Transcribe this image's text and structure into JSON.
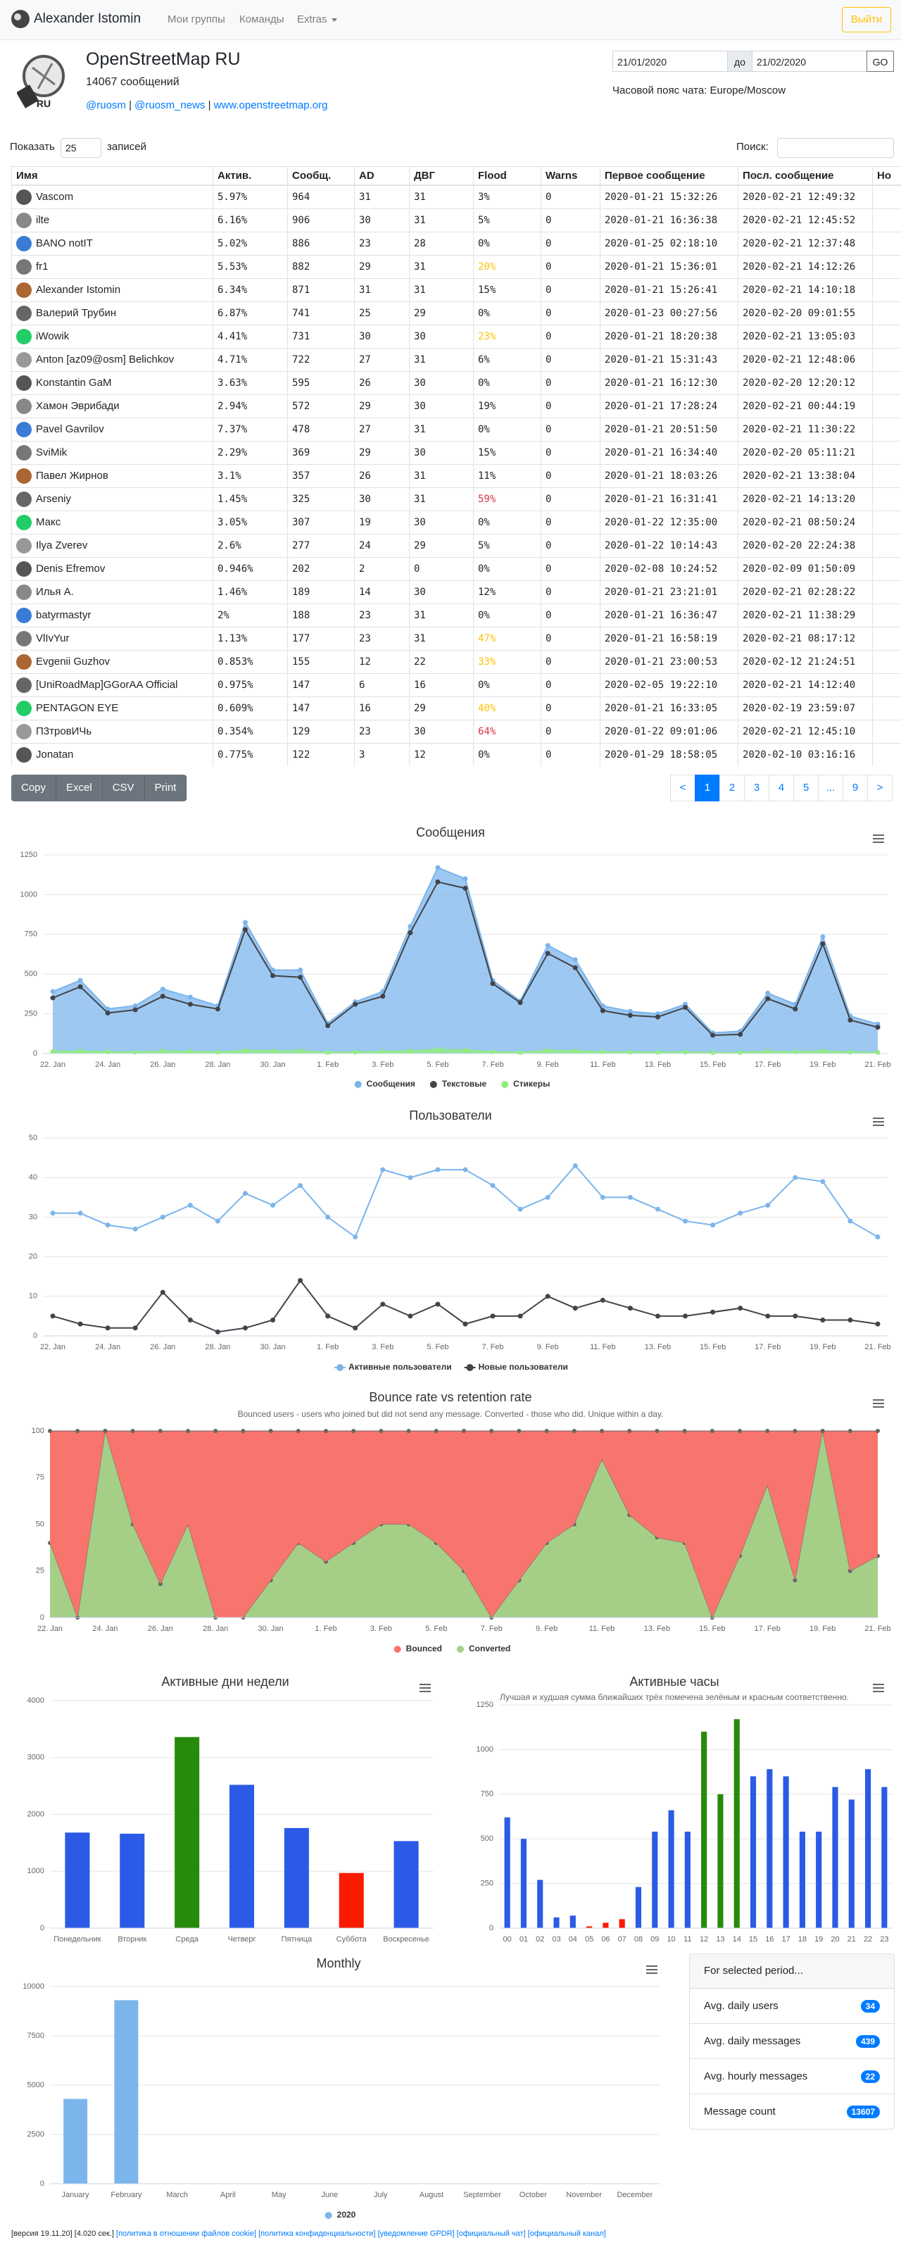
{
  "header": {
    "brand": "Alexander Istomin",
    "nav": [
      "Мои группы",
      "Команды",
      "Extras"
    ],
    "logout": "Выйти",
    "logo_text": "RU",
    "group_title": "OpenStreetMap RU",
    "group_count": "14067 сообщений",
    "links": [
      "@ruosm",
      "@ruosm_news",
      "www.openstreetmap.org"
    ],
    "separator": "|",
    "date_from": "21/01/2020",
    "date_to_label": "до",
    "date_to": "21/02/2020",
    "go": "GO",
    "timezone": "Часовой пояс чата: Europe/Moscow"
  },
  "table_controls": {
    "show": "Показать",
    "page_size": "25",
    "entries": "записей",
    "search": "Поиск:",
    "buttons": [
      "Copy",
      "Excel",
      "CSV",
      "Print"
    ],
    "pagination": [
      "<",
      "1",
      "2",
      "3",
      "4",
      "5",
      "...",
      "9",
      ">"
    ],
    "active": "1"
  },
  "table": {
    "columns": [
      "Имя",
      "Актив.",
      "Сообщ.",
      "AD",
      "ДВГ",
      "Flood",
      "Warns",
      "Первое сообщение",
      "Посл. сообщение",
      "Но"
    ],
    "rows": [
      [
        "Vascom",
        "5.97%",
        "964",
        "31",
        "31",
        "3%",
        "0",
        "2020-01-21 15:32:26",
        "2020-02-21 12:49:32"
      ],
      [
        "ilte",
        "6.16%",
        "906",
        "30",
        "31",
        "5%",
        "0",
        "2020-01-21 16:36:38",
        "2020-02-21 12:45:52"
      ],
      [
        "BANO notIT",
        "5.02%",
        "886",
        "23",
        "28",
        "0%",
        "0",
        "2020-01-25 02:18:10",
        "2020-02-21 12:37:48"
      ],
      [
        "fr1",
        "5.53%",
        "882",
        "29",
        "31",
        "20%",
        "0",
        "2020-01-21 15:36:01",
        "2020-02-21 14:12:26"
      ],
      [
        "Alexander Istomin",
        "6.34%",
        "871",
        "31",
        "31",
        "15%",
        "0",
        "2020-01-21 15:26:41",
        "2020-02-21 14:10:18"
      ],
      [
        "Валерий Трубин",
        "6.87%",
        "741",
        "25",
        "29",
        "0%",
        "0",
        "2020-01-23 00:27:56",
        "2020-02-20 09:01:55"
      ],
      [
        "iWowik",
        "4.41%",
        "731",
        "30",
        "30",
        "23%",
        "0",
        "2020-01-21 18:20:38",
        "2020-02-21 13:05:03"
      ],
      [
        "Anton [az09@osm] Belichkov",
        "4.71%",
        "722",
        "27",
        "31",
        "6%",
        "0",
        "2020-01-21 15:31:43",
        "2020-02-21 12:48:06"
      ],
      [
        "Konstantin GaM",
        "3.63%",
        "595",
        "26",
        "30",
        "0%",
        "0",
        "2020-01-21 16:12:30",
        "2020-02-20 12:20:12"
      ],
      [
        "Хамон Эврибади",
        "2.94%",
        "572",
        "29",
        "30",
        "19%",
        "0",
        "2020-01-21 17:28:24",
        "2020-02-21 00:44:19"
      ],
      [
        "Pavel Gavrilov",
        "7.37%",
        "478",
        "27",
        "31",
        "0%",
        "0",
        "2020-01-21 20:51:50",
        "2020-02-21 11:30:22"
      ],
      [
        "SviMik",
        "2.29%",
        "369",
        "29",
        "30",
        "15%",
        "0",
        "2020-01-21 16:34:40",
        "2020-02-20 05:11:21"
      ],
      [
        "Павел Жирнов",
        "3.1%",
        "357",
        "26",
        "31",
        "11%",
        "0",
        "2020-01-21 18:03:26",
        "2020-02-21 13:38:04"
      ],
      [
        "Arseniy",
        "1.45%",
        "325",
        "30",
        "31",
        "59%",
        "0",
        "2020-01-21 16:31:41",
        "2020-02-21 14:13:20"
      ],
      [
        "Макс",
        "3.05%",
        "307",
        "19",
        "30",
        "0%",
        "0",
        "2020-01-22 12:35:00",
        "2020-02-21 08:50:24"
      ],
      [
        "Ilya Zverev",
        "2.6%",
        "277",
        "24",
        "29",
        "5%",
        "0",
        "2020-01-22 10:14:43",
        "2020-02-20 22:24:38"
      ],
      [
        "Denis Efremov",
        "0.946%",
        "202",
        "2",
        "0",
        "0%",
        "0",
        "2020-02-08 10:24:52",
        "2020-02-09 01:50:09"
      ],
      [
        "Илья А.",
        "1.46%",
        "189",
        "14",
        "30",
        "12%",
        "0",
        "2020-01-21 23:21:01",
        "2020-02-21 02:28:22"
      ],
      [
        "batyrmastyr",
        "2%",
        "188",
        "23",
        "31",
        "0%",
        "0",
        "2020-01-21 16:36:47",
        "2020-02-21 11:38:29"
      ],
      [
        "VlIvYur",
        "1.13%",
        "177",
        "23",
        "31",
        "47%",
        "0",
        "2020-01-21 16:58:19",
        "2020-02-21 08:17:12"
      ],
      [
        "Evgenii Guzhov",
        "0.853%",
        "155",
        "12",
        "22",
        "33%",
        "0",
        "2020-01-21 23:00:53",
        "2020-02-12 21:24:51"
      ],
      [
        "[UniRoadMap]GGorAA Official",
        "0.975%",
        "147",
        "6",
        "16",
        "0%",
        "0",
        "2020-02-05 19:22:10",
        "2020-02-21 14:12:40"
      ],
      [
        "PENTAGON EYE",
        "0.609%",
        "147",
        "16",
        "29",
        "40%",
        "0",
        "2020-01-21 16:33:05",
        "2020-02-19 23:59:07"
      ],
      [
        "П3тровИЧь",
        "0.354%",
        "129",
        "23",
        "30",
        "64%",
        "0",
        "2020-01-22 09:01:06",
        "2020-02-21 12:45:10"
      ],
      [
        "Jonatan",
        "0.775%",
        "122",
        "3",
        "12",
        "0%",
        "0",
        "2020-01-29 18:58:05",
        "2020-02-10 03:16:16"
      ]
    ]
  },
  "chart_data": [
    {
      "type": "area",
      "title": "Сообщения",
      "grid": true,
      "legend": true,
      "categories": [
        "22. Jan",
        null,
        "24. Jan",
        null,
        "26. Jan",
        null,
        "28. Jan",
        null,
        "30. Jan",
        null,
        "1. Feb",
        null,
        "3. Feb",
        null,
        "5. Feb",
        null,
        "7. Feb",
        null,
        "9. Feb",
        null,
        "11. Feb",
        null,
        "13. Feb",
        null,
        "15. Feb",
        null,
        "17. Feb",
        null,
        "19. Feb",
        null,
        "21. Feb"
      ],
      "ylim": [
        0,
        1250
      ],
      "yticks": [
        0,
        250,
        500,
        750,
        1000,
        1250
      ],
      "series": [
        {
          "name": "Сообщения",
          "color": "#7cb5ec",
          "type": "area",
          "values": [
            390,
            460,
            280,
            300,
            405,
            355,
            300,
            825,
            525,
            525,
            190,
            325,
            390,
            800,
            1170,
            1100,
            460,
            330,
            680,
            590,
            300,
            265,
            250,
            310,
            130,
            140,
            380,
            310,
            735,
            235,
            185
          ]
        },
        {
          "name": "Текстовые",
          "color": "#434348",
          "type": "line",
          "values": [
            350,
            420,
            255,
            275,
            360,
            310,
            280,
            780,
            490,
            480,
            175,
            310,
            360,
            760,
            1080,
            1040,
            440,
            320,
            630,
            540,
            270,
            240,
            230,
            290,
            115,
            120,
            345,
            280,
            690,
            210,
            165
          ]
        },
        {
          "name": "Стикеры",
          "color": "#90ed7d",
          "type": "area",
          "values": [
            12,
            15,
            10,
            8,
            14,
            12,
            9,
            18,
            15,
            16,
            6,
            8,
            12,
            15,
            25,
            20,
            10,
            6,
            18,
            15,
            10,
            8,
            7,
            8,
            5,
            6,
            12,
            10,
            15,
            8,
            6
          ]
        }
      ]
    },
    {
      "type": "line",
      "title": "Пользователи",
      "grid": true,
      "legend": true,
      "categories": [
        "22. Jan",
        null,
        "24. Jan",
        null,
        "26. Jan",
        null,
        "28. Jan",
        null,
        "30. Jan",
        null,
        "1. Feb",
        null,
        "3. Feb",
        null,
        "5. Feb",
        null,
        "7. Feb",
        null,
        "9. Feb",
        null,
        "11. Feb",
        null,
        "13. Feb",
        null,
        "15. Feb",
        null,
        "17. Feb",
        null,
        "19. Feb",
        null,
        "21. Feb"
      ],
      "ylim": [
        0,
        50
      ],
      "yticks": [
        0,
        10,
        20,
        30,
        40,
        50
      ],
      "series": [
        {
          "name": "Активные пользователи",
          "color": "#7cb5ec",
          "values": [
            31,
            31,
            28,
            27,
            30,
            33,
            29,
            36,
            33,
            38,
            30,
            25,
            42,
            40,
            42,
            42,
            38,
            32,
            35,
            43,
            35,
            35,
            32,
            29,
            28,
            31,
            33,
            40,
            39,
            29,
            25
          ]
        },
        {
          "name": "Новые пользователи",
          "color": "#434348",
          "values": [
            5,
            3,
            2,
            2,
            11,
            4,
            1,
            2,
            4,
            14,
            5,
            2,
            8,
            5,
            8,
            3,
            5,
            5,
            10,
            7,
            9,
            7,
            5,
            5,
            6,
            7,
            5,
            5,
            4,
            4,
            3
          ]
        }
      ]
    },
    {
      "type": "area",
      "stacked": true,
      "title": "Bounce rate vs retention rate",
      "subtitle": "Bounced users - users who joined but did not send any message. Converted - those who did. Unique within a day.",
      "grid": true,
      "legend": true,
      "line_color": "#666666",
      "categories": [
        "22. Jan",
        null,
        "24. Jan",
        null,
        "26. Jan",
        null,
        "28. Jan",
        null,
        "30. Jan",
        null,
        "1. Feb",
        null,
        "3. Feb",
        null,
        "5. Feb",
        null,
        "7. Feb",
        null,
        "9. Feb",
        null,
        "11. Feb",
        null,
        "13. Feb",
        null,
        "15. Feb",
        null,
        "17. Feb",
        null,
        "19. Feb",
        null,
        "21. Feb"
      ],
      "ylim": [
        0,
        100
      ],
      "yticks": [
        0,
        25,
        50,
        75,
        100
      ],
      "series": [
        {
          "name": "Bounced",
          "color": "#f7756c",
          "type": "area",
          "values": [
            60,
            100,
            0,
            50,
            82,
            50,
            100,
            100,
            80,
            60,
            70,
            60,
            50,
            50,
            60,
            75,
            100,
            80,
            60,
            50,
            15,
            45,
            57,
            60,
            100,
            67,
            29,
            80,
            0,
            75,
            67
          ]
        },
        {
          "name": "Converted",
          "color": "#a5cf87",
          "type": "area",
          "values": [
            40,
            0,
            100,
            50,
            18,
            50,
            0,
            0,
            20,
            40,
            30,
            40,
            50,
            50,
            40,
            25,
            0,
            20,
            40,
            50,
            85,
            55,
            43,
            40,
            0,
            33,
            71,
            20,
            100,
            25,
            33
          ]
        }
      ]
    },
    {
      "type": "bar",
      "title": "Активные дни недели",
      "grid": true,
      "categories": [
        "Понедельник",
        "Вторник",
        "Среда",
        "Четверг",
        "Пятница",
        "Суббота",
        "Воскресенье"
      ],
      "values": [
        1680,
        1660,
        3360,
        2520,
        1760,
        970,
        1530
      ],
      "colors": [
        "#2a5ae6",
        "#2a5ae6",
        "#268b0a",
        "#2a5ae6",
        "#2a5ae6",
        "#fa1a00",
        "#2a5ae6"
      ],
      "ylim": [
        0,
        4000
      ],
      "yticks": [
        0,
        1000,
        2000,
        3000,
        4000
      ]
    },
    {
      "type": "bar",
      "title": "Активные часы",
      "subtitle": "Лучшая и худшая сумма ближайших трёх помечена зелёным и красным соответственно.",
      "grid": true,
      "categories": [
        "00",
        "01",
        "02",
        "03",
        "04",
        "05",
        "06",
        "07",
        "08",
        "09",
        "10",
        "11",
        "12",
        "13",
        "14",
        "15",
        "16",
        "17",
        "18",
        "19",
        "20",
        "21",
        "22",
        "23"
      ],
      "values": [
        620,
        500,
        270,
        60,
        70,
        10,
        30,
        50,
        230,
        540,
        660,
        540,
        1100,
        750,
        1170,
        850,
        890,
        850,
        540,
        540,
        790,
        720,
        890,
        790
      ],
      "colors": [
        "#2a5ae6",
        "#2a5ae6",
        "#2a5ae6",
        "#2a5ae6",
        "#2a5ae6",
        "#fa1a00",
        "#fa1a00",
        "#fa1a00",
        "#2a5ae6",
        "#2a5ae6",
        "#2a5ae6",
        "#2a5ae6",
        "#268b0a",
        "#268b0a",
        "#268b0a",
        "#2a5ae6",
        "#2a5ae6",
        "#2a5ae6",
        "#2a5ae6",
        "#2a5ae6",
        "#2a5ae6",
        "#2a5ae6",
        "#2a5ae6",
        "#2a5ae6"
      ],
      "ylim": [
        0,
        1250
      ],
      "yticks": [
        0,
        250,
        500,
        750,
        1000,
        1250
      ]
    },
    {
      "type": "bar",
      "title": "Monthly",
      "grid": true,
      "legend": true,
      "categories": [
        "January",
        "February",
        "March",
        "April",
        "May",
        "June",
        "July",
        "August",
        "September",
        "October",
        "November",
        "December"
      ],
      "series": [
        {
          "name": "2020",
          "color": "#7cb5ec",
          "values": [
            4300,
            9307,
            null,
            null,
            null,
            null,
            null,
            null,
            null,
            null,
            null,
            null
          ]
        }
      ],
      "ylim": [
        0,
        10000
      ],
      "yticks": [
        0,
        2500,
        5000,
        7500,
        10000
      ]
    }
  ],
  "sidebar": {
    "title": "For selected period...",
    "items": [
      {
        "label": "Avg. daily users",
        "value": 34
      },
      {
        "label": "Avg. daily messages",
        "value": 439
      },
      {
        "label": "Avg. hourly messages",
        "value": 22
      },
      {
        "label": "Message count",
        "value": 13607
      }
    ]
  },
  "footer": {
    "text": "[версия 19.11.20] [4.020 сек.]",
    "links": [
      "[политика в отношении файлов cookie]",
      "[политика конфиденциальности]",
      "[уведомление GPDR]",
      "[официальный чат]",
      "[официальный канал]"
    ]
  }
}
